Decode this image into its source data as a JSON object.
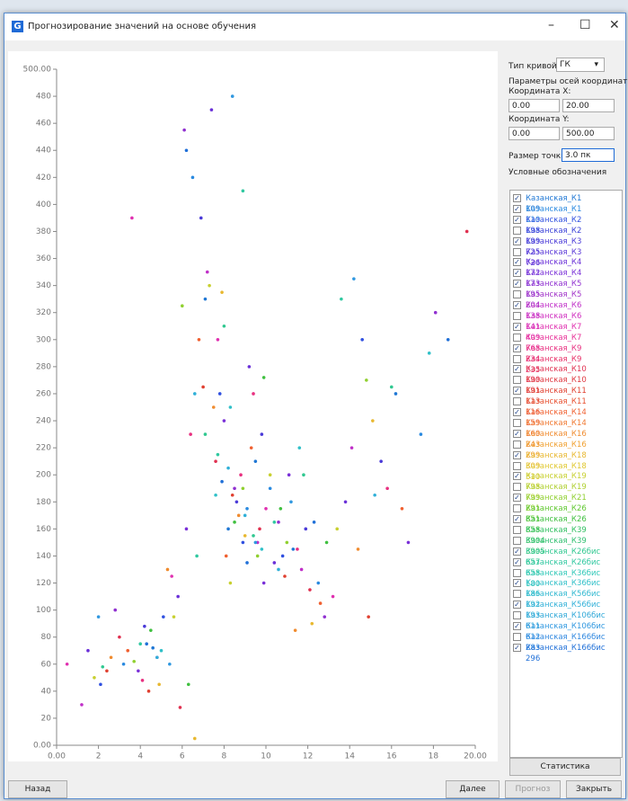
{
  "window": {
    "title": "Прогнозирование значений на основе обучения"
  },
  "panel": {
    "curve_type_label": "Тип кривой:",
    "curve_type": "ГК",
    "axes_params": "Параметры осей координат",
    "x_coord_label": "Координата X:",
    "x_from": "0.00",
    "x_to": "20.00",
    "y_coord_label": "Координата Y:",
    "y_from": "0.00",
    "y_to": "500.00",
    "point_size_label": "Размер точки:",
    "point_size": "3.0 пк",
    "legend_title": "Условные обозначения",
    "stats_button": "Статистика"
  },
  "buttons": {
    "back": "Назад",
    "next": "Далее",
    "forecast": "Прогноз",
    "close": "Закрыть"
  },
  "chart_data": {
    "type": "scatter",
    "xlim": [
      0,
      20
    ],
    "ylim": [
      0,
      500
    ],
    "xticks": [
      {
        "value": 0,
        "label": "0.00"
      },
      2,
      4,
      6,
      8,
      10,
      12,
      14,
      16,
      18,
      {
        "value": 20,
        "label": "20.00"
      }
    ],
    "yticks": [
      {
        "value": 0,
        "label": "0.00"
      },
      20,
      40,
      60,
      80,
      100,
      120,
      140,
      160,
      180,
      200,
      220,
      240,
      260,
      280,
      300,
      320,
      340,
      360,
      380,
      400,
      420,
      440,
      460,
      480,
      {
        "value": 500,
        "label": "500.00"
      }
    ],
    "series": [
      {
        "name": "Казанская_К1 109",
        "color": "#1f77d4",
        "checked": true,
        "x": [
          8.2,
          9.5,
          4.6,
          11.3,
          16.2,
          7.1
        ],
        "values": [
          160,
          210,
          72,
          145,
          260,
          330
        ]
      },
      {
        "name": "Казанская_К1 110",
        "color": "#2a8ae0",
        "checked": true,
        "x": [
          6.5,
          9.1,
          3.2,
          12.5,
          17.4,
          10.2
        ],
        "values": [
          420,
          175,
          60,
          120,
          230,
          190
        ]
      },
      {
        "name": "Казанская_К2 198",
        "color": "#3050e0",
        "checked": true,
        "x": [
          7.8,
          5.1,
          10.8,
          14.6,
          2.1,
          8.9
        ],
        "values": [
          260,
          95,
          140,
          300,
          45,
          150
        ]
      },
      {
        "name": "Казанская_К2 199",
        "color": "#3a40d8",
        "checked": false
      },
      {
        "name": "Казанская_К3 725",
        "color": "#4a3ad8",
        "checked": true,
        "x": [
          8.6,
          6.9,
          11.9,
          4.2,
          15.5,
          9.8
        ],
        "values": [
          180,
          390,
          160,
          88,
          210,
          230
        ]
      },
      {
        "name": "Казанская_К3 726",
        "color": "#5a38d8",
        "checked": false
      },
      {
        "name": "Казанская_К4 172",
        "color": "#6a30d8",
        "checked": true,
        "x": [
          7.4,
          10.4,
          5.8,
          13.8,
          1.5,
          9.2
        ],
        "values": [
          470,
          135,
          110,
          180,
          70,
          280
        ]
      },
      {
        "name": "Казанская_К4 173",
        "color": "#7a30d8",
        "checked": true,
        "x": [
          8.0,
          3.9,
          11.1,
          16.8,
          6.2,
          9.9
        ],
        "values": [
          240,
          55,
          200,
          150,
          160,
          120
        ]
      },
      {
        "name": "Казанская_К5 195",
        "color": "#9030d0",
        "checked": true,
        "x": [
          6.1,
          8.5,
          12.8,
          2.8,
          18.1,
          10.6
        ],
        "values": [
          455,
          190,
          95,
          100,
          320,
          165
        ]
      },
      {
        "name": "Казанская_К5 204",
        "color": "#a030c8",
        "checked": false
      },
      {
        "name": "Казанская_К6 138",
        "color": "#c030c8",
        "checked": true,
        "x": [
          7.2,
          4.8,
          9.6,
          1.2,
          11.7,
          14.1
        ],
        "values": [
          350,
          65,
          150,
          30,
          130,
          220
        ]
      },
      {
        "name": "Казанская_К6 141",
        "color": "#d030c0",
        "checked": false
      },
      {
        "name": "Казанская_К7 409",
        "color": "#e030b0",
        "checked": true,
        "x": [
          3.6,
          7.7,
          10.0,
          5.5,
          13.2,
          0.5
        ],
        "values": [
          390,
          300,
          175,
          125,
          110,
          60
        ]
      },
      {
        "name": "Казанская_К7 768",
        "color": "#e83098",
        "checked": false
      },
      {
        "name": "Казанская_К9 234",
        "color": "#e83080",
        "checked": true,
        "x": [
          8.8,
          6.4,
          11.5,
          4.1,
          15.8,
          9.4
        ],
        "values": [
          200,
          230,
          145,
          48,
          190,
          260
        ]
      },
      {
        "name": "Казанская_К9 235",
        "color": "#e83068",
        "checked": false
      },
      {
        "name": "Казанская_К10 190",
        "color": "#e03050",
        "checked": true,
        "x": [
          5.9,
          9.7,
          3.0,
          12.1,
          19.6,
          7.6
        ],
        "values": [
          28,
          160,
          80,
          115,
          380,
          210
        ]
      },
      {
        "name": "Казанская_К10 191",
        "color": "#e03840",
        "checked": false
      },
      {
        "name": "Казанская_К11 113",
        "color": "#e04030",
        "checked": true,
        "x": [
          7.0,
          10.9,
          4.4,
          14.9,
          8.4,
          2.4
        ],
        "values": [
          265,
          125,
          40,
          95,
          185,
          55
        ]
      },
      {
        "name": "Казанская_К11 116",
        "color": "#e85030",
        "checked": false
      },
      {
        "name": "Казанская_К14 159",
        "color": "#f06030",
        "checked": true,
        "x": [
          6.8,
          9.3,
          12.6,
          3.4,
          16.5,
          8.1
        ],
        "values": [
          300,
          220,
          105,
          70,
          175,
          140
        ]
      },
      {
        "name": "Казанская_К14 160",
        "color": "#f07830",
        "checked": false
      },
      {
        "name": "Казанская_К16 243",
        "color": "#f08c30",
        "checked": true,
        "x": [
          5.3,
          8.7,
          11.4,
          2.6,
          14.4,
          7.5
        ],
        "values": [
          130,
          170,
          85,
          65,
          145,
          250
        ]
      },
      {
        "name": "Казанская_К16 299",
        "color": "#f0a030",
        "checked": false
      },
      {
        "name": "Казанская_К18 309",
        "color": "#e8b830",
        "checked": true,
        "x": [
          6.6,
          9.0,
          4.9,
          12.2,
          7.9,
          15.1
        ],
        "values": [
          5,
          155,
          45,
          90,
          335,
          240
        ]
      },
      {
        "name": "Казанская_К18 310",
        "color": "#e0c830",
        "checked": false
      },
      {
        "name": "Казанская_К19 798",
        "color": "#c8d030",
        "checked": true,
        "x": [
          7.3,
          10.2,
          5.6,
          13.4,
          8.3,
          1.8
        ],
        "values": [
          340,
          200,
          95,
          160,
          120,
          50
        ]
      },
      {
        "name": "Казанская_К19 799",
        "color": "#b0d030",
        "checked": false
      },
      {
        "name": "Казанская_К21 291",
        "color": "#90d030",
        "checked": true,
        "x": [
          6.0,
          8.9,
          11.0,
          3.7,
          14.8,
          9.6
        ],
        "values": [
          325,
          190,
          150,
          62,
          270,
          140
        ]
      },
      {
        "name": "Казанская_К26 851",
        "color": "#60c830",
        "checked": false
      },
      {
        "name": "Казанская_К26 858",
        "color": "#40c040",
        "checked": true,
        "x": [
          8.5,
          10.7,
          6.3,
          12.9,
          4.5,
          9.9
        ],
        "values": [
          165,
          175,
          45,
          150,
          85,
          272
        ]
      },
      {
        "name": "Казанская_К39 3904",
        "color": "#30c060",
        "checked": false
      },
      {
        "name": "Казанская_К39 3905",
        "color": "#30c070",
        "checked": false
      },
      {
        "name": "Казанская_К26бис 657",
        "color": "#30c890",
        "checked": true,
        "x": [
          7.1,
          9.4,
          11.8,
          2.2,
          16.0,
          8.0
        ],
        "values": [
          230,
          155,
          200,
          58,
          265,
          310
        ]
      },
      {
        "name": "Казанская_К26бис 658",
        "color": "#30c8a0",
        "checked": true,
        "x": [
          8.9,
          6.7,
          10.4,
          4.0,
          13.6,
          7.7
        ],
        "values": [
          410,
          140,
          165,
          75,
          330,
          215
        ]
      },
      {
        "name": "Казанская_К36бис 180",
        "color": "#30c8b8",
        "checked": false
      },
      {
        "name": "Казанская_К36бис 186",
        "color": "#30c0c8",
        "checked": true,
        "x": [
          7.6,
          9.8,
          5.0,
          11.6,
          17.8,
          8.3
        ],
        "values": [
          185,
          145,
          70,
          220,
          290,
          250
        ]
      },
      {
        "name": "Казанская_К56бис 192",
        "color": "#30b8d0",
        "checked": false
      },
      {
        "name": "Казанская_К56бис 193",
        "color": "#30b0d8",
        "checked": true,
        "x": [
          4.8,
          8.2,
          10.6,
          6.6,
          15.2,
          9.0
        ],
        "values": [
          65,
          205,
          130,
          260,
          185,
          170
        ]
      },
      {
        "name": "Казанская_К106бис 611",
        "color": "#30a8d8",
        "checked": false
      },
      {
        "name": "Казанская_К106бис 612",
        "color": "#3098e0",
        "checked": true,
        "x": [
          8.4,
          5.4,
          11.2,
          2.0,
          14.2,
          9.5
        ],
        "values": [
          480,
          60,
          180,
          95,
          345,
          150
        ]
      },
      {
        "name": "Казанская_К166бис 283",
        "color": "#3088e0",
        "checked": false
      },
      {
        "name": "Казанская_К166бис 296",
        "color": "#2070d8",
        "checked": true,
        "x": [
          6.2,
          9.1,
          4.3,
          12.3,
          18.7,
          7.9
        ],
        "values": [
          440,
          135,
          75,
          165,
          300,
          195
        ]
      }
    ]
  }
}
